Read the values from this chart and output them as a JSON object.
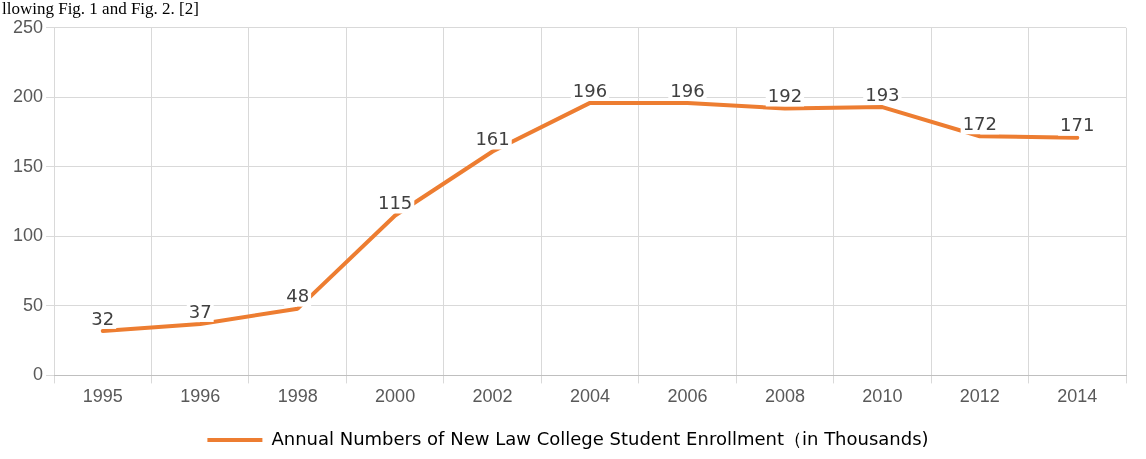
{
  "chart_data": {
    "type": "line",
    "categories": [
      "1995",
      "1996",
      "1998",
      "2000",
      "2002",
      "2004",
      "2006",
      "2008",
      "2010",
      "2012",
      "2014"
    ],
    "series": [
      {
        "name": "Annual Numbers of New Law College Student Enrollment（in Thousands)",
        "color": "#ed7d31",
        "values": [
          32,
          37,
          48,
          115,
          161,
          196,
          196,
          192,
          193,
          172,
          171
        ]
      }
    ],
    "ylim": [
      0,
      250
    ],
    "yticks": [
      0,
      50,
      100,
      150,
      200,
      250
    ],
    "grid": true,
    "legend": "bottom",
    "marker": "none",
    "line_style": "solid",
    "data_labels": true,
    "annotations": [
      "llowing Fig. 1 and Fig. 2. [2]"
    ]
  }
}
